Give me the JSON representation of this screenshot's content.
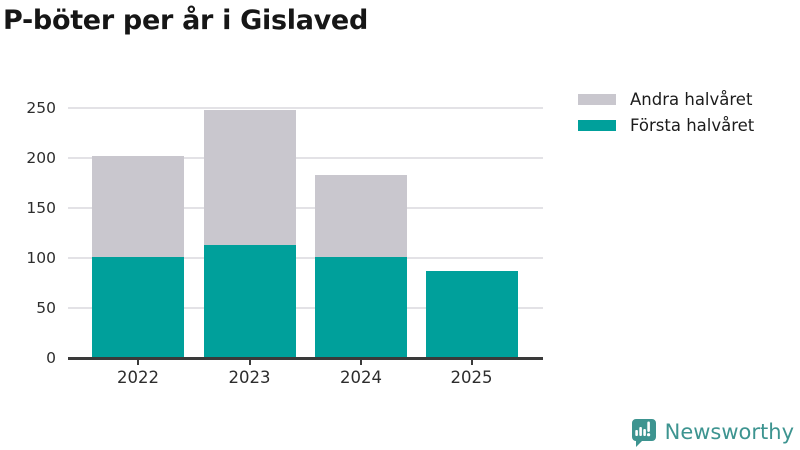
{
  "title": "P-böter per år i Gislaved",
  "legend": {
    "items": [
      {
        "label": "Andra halvåret",
        "color": "#c9c7ce"
      },
      {
        "label": "Första halvåret",
        "color": "#00a09b"
      }
    ]
  },
  "chart_data": {
    "type": "bar",
    "stacked": true,
    "title": "P-böter per år i Gislaved",
    "categories": [
      "2022",
      "2023",
      "2024",
      "2025"
    ],
    "series": [
      {
        "name": "Första halvåret",
        "color": "#00a09b",
        "values": [
          101,
          113,
          101,
          87
        ]
      },
      {
        "name": "Andra halvåret",
        "color": "#c9c7ce",
        "values": [
          101,
          135,
          82,
          0
        ]
      }
    ],
    "totals": [
      202,
      248,
      183,
      87
    ],
    "xlabel": "",
    "ylabel": "",
    "ylim": [
      0,
      250
    ],
    "yticks": [
      0,
      50,
      100,
      150,
      200,
      250
    ],
    "grid": "horizontal",
    "legend_position": "top-right"
  },
  "branding": {
    "logo_text": "Newsworthy",
    "logo_color": "#3d9490"
  },
  "colors": {
    "axis": "#3a3a3a",
    "grid": "#e3e2e6",
    "tick_text": "#2d2d2d",
    "title_text": "#161616",
    "background": "#ffffff"
  }
}
